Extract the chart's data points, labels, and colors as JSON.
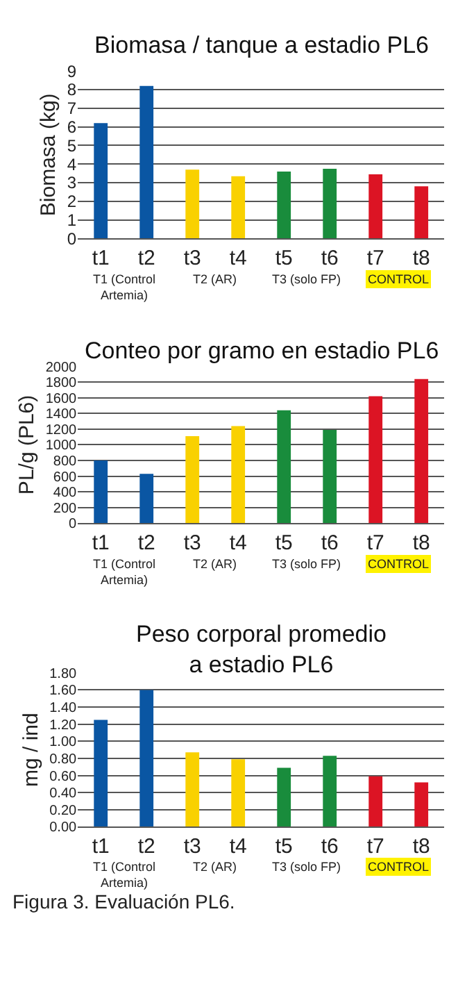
{
  "chart_data": [
    {
      "type": "bar",
      "title": "Biomasa / tanque a estadio PL6",
      "ylabel": "Biomasa (kg)",
      "categories": [
        "t1",
        "t2",
        "t3",
        "t4",
        "t5",
        "t6",
        "t7",
        "t8"
      ],
      "values": [
        6.2,
        8.2,
        3.7,
        3.35,
        3.6,
        3.75,
        3.45,
        2.8
      ],
      "colors": [
        "#0a56a3",
        "#0a56a3",
        "#f9d100",
        "#f9d100",
        "#198c3c",
        "#198c3c",
        "#dc1424",
        "#dc1424"
      ],
      "ylim": [
        0,
        9
      ],
      "yticks": [
        0,
        1,
        2,
        3,
        4,
        5,
        6,
        7,
        8,
        9
      ],
      "grid": "y",
      "annotations": [
        "T1 (Control\nArtemia)",
        "T2 (AR)",
        "T3 (solo FP)",
        "CONTROL"
      ]
    },
    {
      "type": "bar",
      "title": "Conteo por gramo en estadio PL6",
      "ylabel": "PL/g (PL6)",
      "categories": [
        "t1",
        "t2",
        "t3",
        "t4",
        "t5",
        "t6",
        "t7",
        "t8"
      ],
      "values": [
        800,
        630,
        1110,
        1240,
        1440,
        1190,
        1620,
        1840
      ],
      "colors": [
        "#0a56a3",
        "#0a56a3",
        "#f9d100",
        "#f9d100",
        "#198c3c",
        "#198c3c",
        "#dc1424",
        "#dc1424"
      ],
      "ylim": [
        0,
        2000
      ],
      "yticks": [
        0,
        200,
        400,
        600,
        800,
        1000,
        1200,
        1400,
        1600,
        1800,
        2000
      ],
      "grid": "y",
      "annotations": [
        "T1 (Control\nArtemia)",
        "T2 (AR)",
        "T3 (solo FP)",
        "CONTROL"
      ]
    },
    {
      "type": "bar",
      "title": "Peso corporal promedio\na estadio PL6",
      "ylabel": "mg / ind",
      "categories": [
        "t1",
        "t2",
        "t3",
        "t4",
        "t5",
        "t6",
        "t7",
        "t8"
      ],
      "values": [
        1.25,
        1.6,
        0.87,
        0.79,
        0.69,
        0.83,
        0.59,
        0.52
      ],
      "colors": [
        "#0a56a3",
        "#0a56a3",
        "#f9d100",
        "#f9d100",
        "#198c3c",
        "#198c3c",
        "#dc1424",
        "#dc1424"
      ],
      "ylim": [
        0,
        1.8
      ],
      "yticks": [
        {
          "value": 0,
          "label": "0.00"
        },
        {
          "value": 0.2,
          "label": "0.20"
        },
        {
          "value": 0.4,
          "label": "0.40"
        },
        {
          "value": 0.6,
          "label": "0.60"
        },
        {
          "value": 0.8,
          "label": "0.80"
        },
        {
          "value": 1,
          "label": "1.00"
        },
        {
          "value": 1.2,
          "label": "1.20"
        },
        {
          "value": 1.4,
          "label": "1.40"
        },
        {
          "value": 1.6,
          "label": "1.60"
        },
        {
          "value": 1.8,
          "label": "1.80"
        }
      ],
      "grid": "y",
      "annotations": [
        "T1 (Control\nArtemia)",
        "T2 (AR)",
        "T3 (solo FP)",
        "CONTROL",
        "Figura 3. Evaluación PL6."
      ]
    }
  ]
}
